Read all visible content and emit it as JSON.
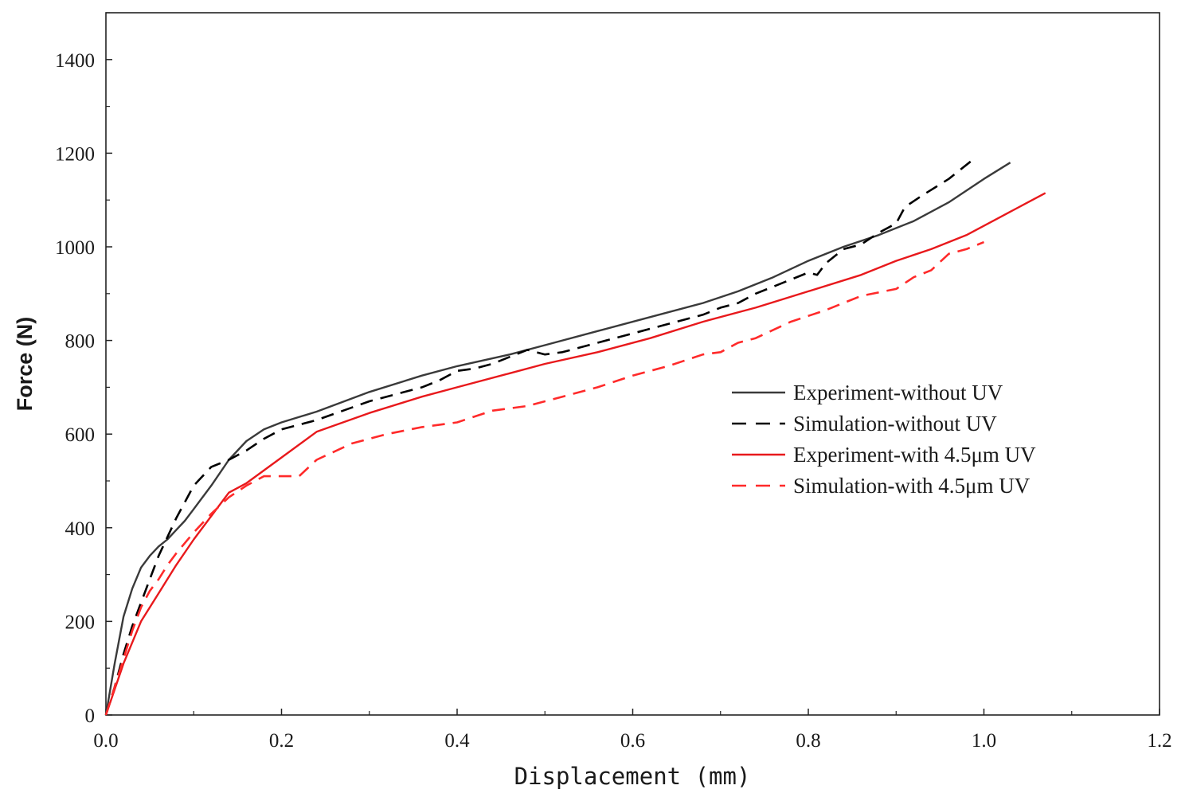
{
  "chart_data": {
    "type": "line",
    "title": "",
    "xlabel": "Displacement (mm)",
    "ylabel": "Force (N)",
    "xlim": [
      0.0,
      1.2
    ],
    "ylim": [
      0,
      1500
    ],
    "xticks": [
      0.0,
      0.2,
      0.4,
      0.6,
      0.8,
      1.0,
      1.2
    ],
    "xtick_labels": [
      "0.0",
      "0.2",
      "0.4",
      "0.6",
      "0.8",
      "1.0",
      "1.2"
    ],
    "yticks": [
      0,
      200,
      400,
      600,
      800,
      1000,
      1200,
      1400
    ],
    "ytick_labels": [
      "0",
      "200",
      "400",
      "600",
      "800",
      "1000",
      "1200",
      "1400"
    ],
    "grid": false,
    "legend_position": "center-right",
    "series": [
      {
        "name": "Experiment-without UV",
        "color": "#3a3a3a",
        "style": "solid",
        "x": [
          0.0,
          0.01,
          0.02,
          0.03,
          0.04,
          0.05,
          0.06,
          0.07,
          0.08,
          0.09,
          0.1,
          0.12,
          0.14,
          0.16,
          0.18,
          0.2,
          0.24,
          0.3,
          0.36,
          0.4,
          0.46,
          0.5,
          0.56,
          0.62,
          0.68,
          0.72,
          0.76,
          0.8,
          0.84,
          0.88,
          0.92,
          0.96,
          1.0,
          1.03
        ],
        "y": [
          0,
          110,
          210,
          270,
          315,
          340,
          360,
          375,
          395,
          415,
          440,
          490,
          545,
          585,
          610,
          625,
          648,
          690,
          725,
          745,
          770,
          790,
          820,
          850,
          880,
          905,
          935,
          970,
          1000,
          1025,
          1055,
          1095,
          1145,
          1180
        ]
      },
      {
        "name": "Simulation-without UV",
        "color": "#000000",
        "style": "dashed",
        "x": [
          0.0,
          0.01,
          0.02,
          0.03,
          0.04,
          0.05,
          0.06,
          0.07,
          0.08,
          0.1,
          0.12,
          0.14,
          0.16,
          0.18,
          0.2,
          0.24,
          0.3,
          0.34,
          0.36,
          0.38,
          0.4,
          0.42,
          0.44,
          0.46,
          0.48,
          0.5,
          0.52,
          0.56,
          0.6,
          0.64,
          0.66,
          0.68,
          0.7,
          0.72,
          0.74,
          0.78,
          0.8,
          0.81,
          0.82,
          0.84,
          0.86,
          0.88,
          0.9,
          0.91,
          0.93,
          0.96,
          0.99
        ],
        "y": [
          0,
          60,
          130,
          190,
          240,
          290,
          340,
          380,
          420,
          490,
          530,
          545,
          565,
          590,
          610,
          630,
          670,
          690,
          700,
          715,
          735,
          740,
          750,
          765,
          780,
          770,
          775,
          795,
          815,
          835,
          845,
          855,
          870,
          880,
          900,
          930,
          945,
          940,
          965,
          995,
          1005,
          1030,
          1050,
          1085,
          1110,
          1145,
          1190
        ]
      },
      {
        "name": "Experiment-with 4.5μm UV",
        "color": "#e8191c",
        "style": "solid",
        "x": [
          0.0,
          0.02,
          0.04,
          0.06,
          0.08,
          0.1,
          0.12,
          0.14,
          0.16,
          0.2,
          0.24,
          0.3,
          0.36,
          0.4,
          0.46,
          0.5,
          0.56,
          0.62,
          0.68,
          0.74,
          0.8,
          0.86,
          0.9,
          0.94,
          0.98,
          1.02,
          1.07
        ],
        "y": [
          0,
          110,
          200,
          260,
          320,
          375,
          425,
          475,
          495,
          550,
          605,
          645,
          680,
          700,
          730,
          750,
          775,
          805,
          840,
          870,
          905,
          940,
          970,
          995,
          1025,
          1065,
          1115
        ]
      },
      {
        "name": "Simulation-with 4.5μm UV",
        "color": "#ff2a2a",
        "style": "dashed",
        "x": [
          0.0,
          0.01,
          0.02,
          0.03,
          0.04,
          0.05,
          0.06,
          0.07,
          0.08,
          0.1,
          0.12,
          0.14,
          0.16,
          0.18,
          0.2,
          0.22,
          0.24,
          0.28,
          0.32,
          0.36,
          0.4,
          0.44,
          0.48,
          0.52,
          0.56,
          0.6,
          0.64,
          0.68,
          0.7,
          0.72,
          0.74,
          0.78,
          0.82,
          0.86,
          0.9,
          0.92,
          0.94,
          0.96,
          0.98,
          1.0
        ],
        "y": [
          0,
          60,
          120,
          180,
          230,
          265,
          290,
          320,
          345,
          390,
          430,
          465,
          490,
          510,
          510,
          510,
          545,
          580,
          600,
          615,
          625,
          650,
          660,
          680,
          700,
          725,
          745,
          770,
          775,
          795,
          805,
          840,
          865,
          895,
          910,
          935,
          950,
          985,
          995,
          1010
        ]
      }
    ]
  }
}
